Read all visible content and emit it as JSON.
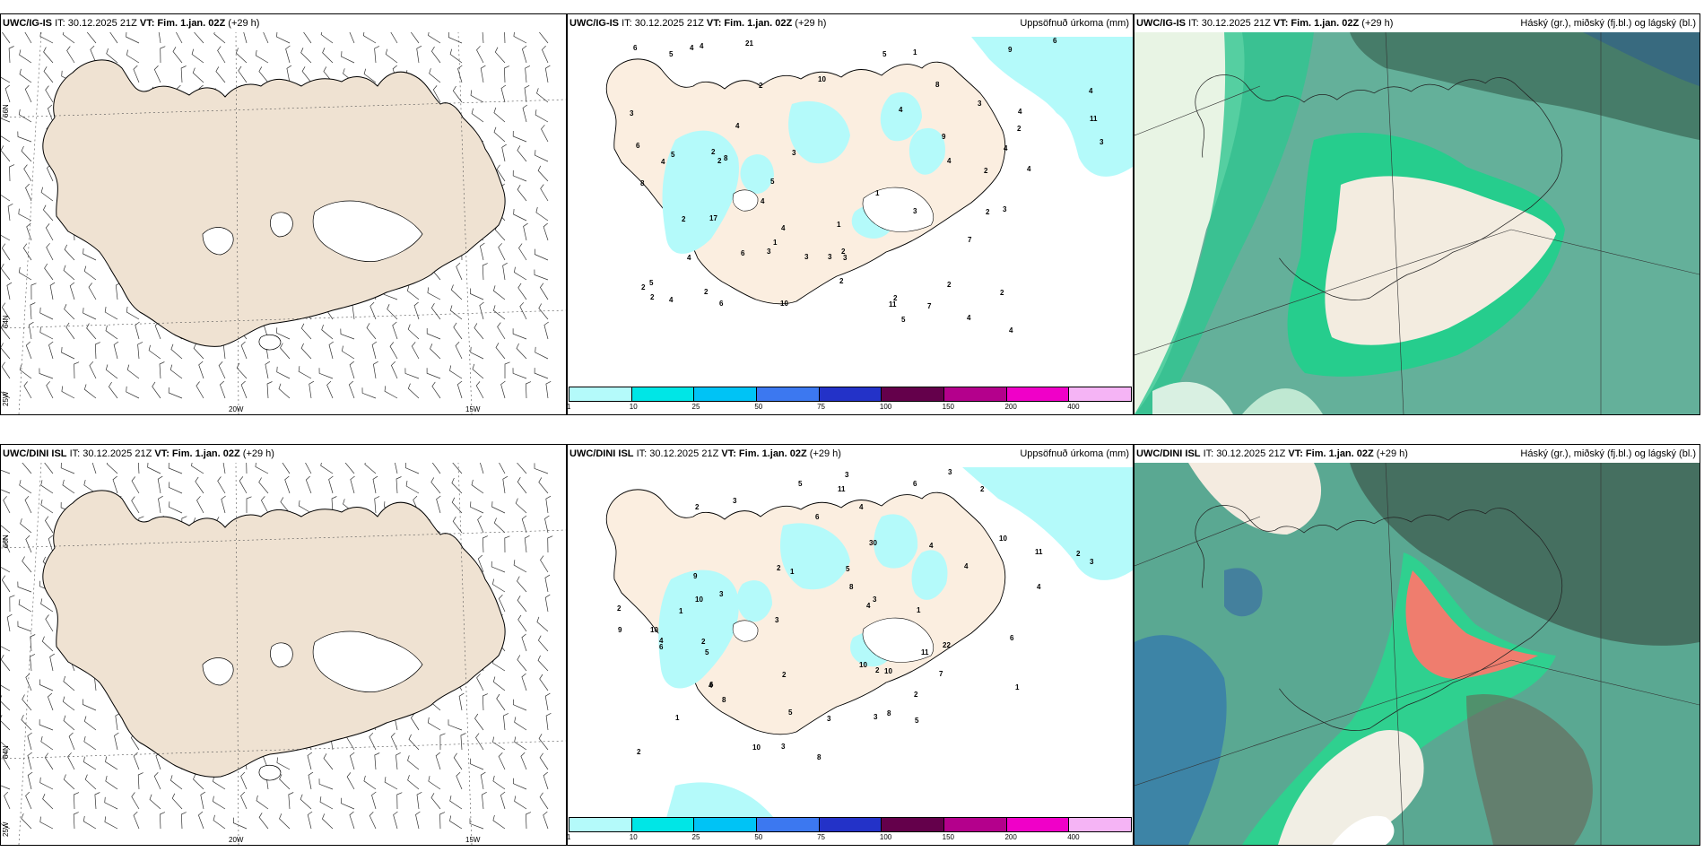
{
  "rows": [
    {
      "model": "UWC/IG-IS",
      "run_prefix": "IT: 30.12.2025 21Z",
      "vt": "VT: Fim. 1.jan. 02Z",
      "lead": "(+29 h)"
    },
    {
      "model": "UWC/DINI ISL",
      "run_prefix": "IT: 30.12.2025 21Z",
      "vt": "VT: Fim. 1.jan. 02Z",
      "lead": "(+29 h)"
    }
  ],
  "precip_panel": {
    "title": "Uppsöfnuð úrkoma (mm)"
  },
  "cloud_panel": {
    "title": "Háský (gr.), miðský (fj.bl.) og lágský (bl.)"
  },
  "wind_panel": {
    "lat_labels": [
      "66N",
      "64N"
    ],
    "lon_labels": [
      "25W",
      "20W",
      "15W"
    ]
  },
  "precip_legend": {
    "ticks": [
      "1",
      "10",
      "25",
      "50",
      "75",
      "100",
      "150",
      "200",
      "400"
    ],
    "colors": [
      "#b4fafa",
      "#00e6e6",
      "#00c3f5",
      "#3c78f0",
      "#2332c8",
      "#64004b",
      "#b4008c",
      "#f000c8",
      "#f5b4f5"
    ]
  },
  "precip_values_ig": [
    "1",
    "2",
    "4",
    "3",
    "2",
    "3",
    "4",
    "3",
    "2",
    "4",
    "5",
    "6",
    "4",
    "5",
    "2",
    "1",
    "3",
    "4",
    "3",
    "8",
    "7",
    "6",
    "4",
    "11",
    "5",
    "4",
    "2",
    "1",
    "3",
    "4",
    "3",
    "6",
    "5",
    "4",
    "17",
    "10",
    "8",
    "4",
    "3",
    "2",
    "2",
    "4",
    "21",
    "8",
    "5",
    "4",
    "3",
    "9",
    "11",
    "9",
    "6",
    "5",
    "4",
    "2",
    "1",
    "10",
    "3",
    "2",
    "2",
    "4",
    "6",
    "4",
    "7",
    "4",
    "2",
    "2",
    "2",
    "2",
    "2"
  ],
  "precip_values_dini": [
    "1",
    "2",
    "3",
    "10",
    "2",
    "3",
    "5",
    "6",
    "11",
    "4",
    "10",
    "3",
    "7",
    "4",
    "8",
    "5",
    "2",
    "4",
    "3",
    "5",
    "11",
    "6",
    "3",
    "8",
    "5",
    "4",
    "6",
    "30",
    "22",
    "9",
    "8",
    "8",
    "10",
    "6",
    "2",
    "1",
    "4",
    "6",
    "3",
    "4",
    "3",
    "2",
    "9",
    "10",
    "11",
    "3",
    "2",
    "2",
    "1",
    "10",
    "5",
    "4",
    "3",
    "10",
    "2",
    "1",
    "2",
    "1",
    "2",
    "3"
  ]
}
